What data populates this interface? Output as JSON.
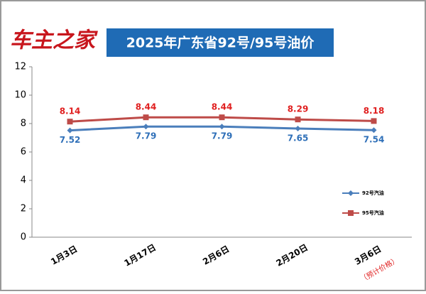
{
  "header": {
    "logo": "车主之家"
  },
  "chart_data": {
    "type": "line",
    "title": "2025年广东省92号/95号油价",
    "categories": [
      "1月3日",
      "1月17日",
      "2月6日",
      "2月20日",
      "3月6日"
    ],
    "series": [
      {
        "name": "92号汽油",
        "color": "#4a7ebb",
        "marker": "diamond",
        "values": [
          7.52,
          7.79,
          7.79,
          7.65,
          7.54
        ]
      },
      {
        "name": "95号汽油",
        "color": "#be4b48",
        "marker": "square",
        "values": [
          8.14,
          8.44,
          8.44,
          8.29,
          8.18
        ]
      }
    ],
    "ylim": [
      0,
      12
    ],
    "yticks": [
      0,
      2,
      4,
      6,
      8,
      10,
      12
    ],
    "grid": false,
    "annotation": "（预计价格）",
    "legend": "right"
  }
}
